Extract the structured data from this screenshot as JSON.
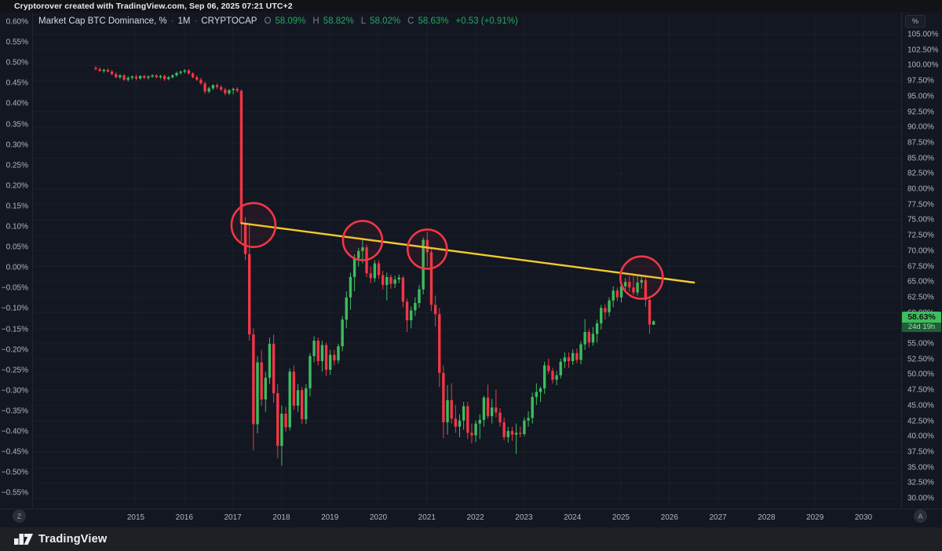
{
  "attribution": "Cryptorover created with TradingView.com, Sep 06, 2025 07:21 UTC+2",
  "legend": {
    "title": "Market Cap BTC Dominance, %",
    "separator": "·",
    "interval": "1M",
    "exchange": "CRYPTOCAP",
    "o_label": "O",
    "o_value": "58.09%",
    "h_label": "H",
    "h_value": "58.82%",
    "l_label": "L",
    "l_value": "58.02%",
    "c_label": "C",
    "c_value": "58.63%",
    "change": "+0.53 (+0.91%)"
  },
  "right_axis": {
    "mode_button": "%",
    "labels": [
      "105.00%",
      "102.50%",
      "100.00%",
      "97.50%",
      "95.00%",
      "92.50%",
      "90.00%",
      "87.50%",
      "85.00%",
      "82.50%",
      "80.00%",
      "77.50%",
      "75.00%",
      "72.50%",
      "70.00%",
      "67.50%",
      "65.00%",
      "62.50%",
      "60.00%",
      "57.50%",
      "55.00%",
      "52.50%",
      "50.00%",
      "47.50%",
      "45.00%",
      "42.50%",
      "40.00%",
      "37.50%",
      "35.00%",
      "32.50%",
      "30.00%"
    ],
    "badge": {
      "price": "58.63%",
      "countdown": "24d 19h"
    },
    "auto_button": "A"
  },
  "left_axis": {
    "labels": [
      "0.60%",
      "0.55%",
      "0.50%",
      "0.45%",
      "0.40%",
      "0.35%",
      "0.30%",
      "0.25%",
      "0.20%",
      "0.15%",
      "0.10%",
      "0.05%",
      "0.00%",
      "−0.05%",
      "−0.10%",
      "−0.15%",
      "−0.20%",
      "−0.25%",
      "−0.30%",
      "−0.35%",
      "−0.40%",
      "−0.45%",
      "−0.50%",
      "−0.55%"
    ],
    "zoom_button": "Z"
  },
  "time_axis": {
    "years": [
      "2015",
      "2016",
      "2017",
      "2018",
      "2019",
      "2020",
      "2021",
      "2022",
      "2023",
      "2024",
      "2025",
      "2026",
      "2027",
      "2028",
      "2029",
      "2030"
    ]
  },
  "footer": {
    "brand": "TradingView"
  },
  "colors": {
    "background": "#131722",
    "up": "#3cbd5e",
    "down": "#f23645",
    "trendline": "#f2cc2a",
    "annotation": "#f23645",
    "axis_text": "#b2b5be",
    "legend_value_green": "#27a65f",
    "badge_bg": "#3dbd5b",
    "countdown_bg": "#255c38"
  },
  "chart_data": {
    "type": "candlestick",
    "title": "Market Cap BTC Dominance, %",
    "symbol": "CRYPTOCAP",
    "interval": "1M",
    "start_month": "2014-03",
    "y_axis": {
      "min": 30,
      "max": 105,
      "step": 2.5,
      "unit": "%"
    },
    "x_years_shown": [
      2015,
      2016,
      2017,
      2018,
      2019,
      2020,
      2021,
      2022,
      2023,
      2024,
      2025,
      2026,
      2027,
      2028,
      2029,
      2030
    ],
    "last_price": 58.63,
    "bar_countdown": "24d 19h",
    "candles_ohlc": [
      [
        99.6,
        99.9,
        99.2,
        99.4
      ],
      [
        99.4,
        99.7,
        99.0,
        99.1
      ],
      [
        99.1,
        99.5,
        98.8,
        99.3
      ],
      [
        99.3,
        99.5,
        98.9,
        99.0
      ],
      [
        99.0,
        99.3,
        98.4,
        98.6
      ],
      [
        98.6,
        98.9,
        97.9,
        98.1
      ],
      [
        98.1,
        98.6,
        97.8,
        98.4
      ],
      [
        98.4,
        98.6,
        97.5,
        97.7
      ],
      [
        97.7,
        98.3,
        97.4,
        98.0
      ],
      [
        98.0,
        98.4,
        97.7,
        98.2
      ],
      [
        98.2,
        98.5,
        97.6,
        97.9
      ],
      [
        97.9,
        98.4,
        97.7,
        98.3
      ],
      [
        98.3,
        98.5,
        97.8,
        98.0
      ],
      [
        98.0,
        98.4,
        97.7,
        98.2
      ],
      [
        98.2,
        98.6,
        98.0,
        98.4
      ],
      [
        98.4,
        98.6,
        97.9,
        98.1
      ],
      [
        98.1,
        98.5,
        97.8,
        98.3
      ],
      [
        98.3,
        98.5,
        97.5,
        97.8
      ],
      [
        97.8,
        98.3,
        97.6,
        98.1
      ],
      [
        98.1,
        98.6,
        97.9,
        98.4
      ],
      [
        98.4,
        99.0,
        98.2,
        98.8
      ],
      [
        98.8,
        99.2,
        98.5,
        99.0
      ],
      [
        99.0,
        99.4,
        98.7,
        99.2
      ],
      [
        99.2,
        99.4,
        98.5,
        98.7
      ],
      [
        98.7,
        98.9,
        97.9,
        98.1
      ],
      [
        98.1,
        98.4,
        97.5,
        97.7
      ],
      [
        97.7,
        98.0,
        96.9,
        97.1
      ],
      [
        97.1,
        97.4,
        95.4,
        95.8
      ],
      [
        95.8,
        96.6,
        95.5,
        96.3
      ],
      [
        96.3,
        97.0,
        96.0,
        96.8
      ],
      [
        96.8,
        97.1,
        96.2,
        96.5
      ],
      [
        96.5,
        96.8,
        95.8,
        96.1
      ],
      [
        96.1,
        96.4,
        95.2,
        95.5
      ],
      [
        95.5,
        96.2,
        95.2,
        96.0
      ],
      [
        96.0,
        96.4,
        95.3,
        96.2
      ],
      [
        96.2,
        96.5,
        95.6,
        95.9
      ],
      [
        95.9,
        96.1,
        71.5,
        74.5
      ],
      [
        74.5,
        75.5,
        68.5,
        69.5
      ],
      [
        69.5,
        74.3,
        55.5,
        56.5
      ],
      [
        56.5,
        57.5,
        37.8,
        42.0
      ],
      [
        42.0,
        53.0,
        40.5,
        52.0
      ],
      [
        52.0,
        54.0,
        45.0,
        46.0
      ],
      [
        46.0,
        50.5,
        44.0,
        49.5
      ],
      [
        49.5,
        56.0,
        48.5,
        55.0
      ],
      [
        55.0,
        56.5,
        45.5,
        47.0
      ],
      [
        47.0,
        48.5,
        36.5,
        38.5
      ],
      [
        38.5,
        45.0,
        35.3,
        43.7
      ],
      [
        43.7,
        44.8,
        40.8,
        41.5
      ],
      [
        41.5,
        51.0,
        41.0,
        50.5
      ],
      [
        50.5,
        51.5,
        44.3,
        45.0
      ],
      [
        45.0,
        48.5,
        44.0,
        47.5
      ],
      [
        47.5,
        48.0,
        42.0,
        42.8
      ],
      [
        42.8,
        48.5,
        42.0,
        47.8
      ],
      [
        47.8,
        53.5,
        46.5,
        53.0
      ],
      [
        53.0,
        56.2,
        52.0,
        55.5
      ],
      [
        55.5,
        56.0,
        51.5,
        52.2
      ],
      [
        52.2,
        55.5,
        50.5,
        54.8
      ],
      [
        54.8,
        55.2,
        49.8,
        50.8
      ],
      [
        50.8,
        54.0,
        50.0,
        53.2
      ],
      [
        53.2,
        54.0,
        51.5,
        52.3
      ],
      [
        52.3,
        55.0,
        51.8,
        54.6
      ],
      [
        54.6,
        59.5,
        53.8,
        58.9
      ],
      [
        58.9,
        63.5,
        57.5,
        62.5
      ],
      [
        62.5,
        66.5,
        60.5,
        65.8
      ],
      [
        65.8,
        69.5,
        63.5,
        68.8
      ],
      [
        68.8,
        70.5,
        67.5,
        70.0
      ],
      [
        70.0,
        72.0,
        68.0,
        70.6
      ],
      [
        70.6,
        71.0,
        65.8,
        66.4
      ],
      [
        66.4,
        67.5,
        64.8,
        65.6
      ],
      [
        65.6,
        68.5,
        65.0,
        68.0
      ],
      [
        68.0,
        68.5,
        65.5,
        66.1
      ],
      [
        66.1,
        66.8,
        63.8,
        64.5
      ],
      [
        64.5,
        66.5,
        62.0,
        65.8
      ],
      [
        65.8,
        66.2,
        63.9,
        64.7
      ],
      [
        64.7,
        66.0,
        64.0,
        65.4
      ],
      [
        65.4,
        66.2,
        64.8,
        65.7
      ],
      [
        65.7,
        66.0,
        60.9,
        61.8
      ],
      [
        61.8,
        62.3,
        56.9,
        58.8
      ],
      [
        58.8,
        61.0,
        57.5,
        60.4
      ],
      [
        60.4,
        62.5,
        59.5,
        61.6
      ],
      [
        61.6,
        64.5,
        60.8,
        63.8
      ],
      [
        63.8,
        72.2,
        63.0,
        71.8
      ],
      [
        71.8,
        73.1,
        67.5,
        69.8
      ],
      [
        69.8,
        70.5,
        60.3,
        61.3
      ],
      [
        61.3,
        62.8,
        57.8,
        59.8
      ],
      [
        59.8,
        60.8,
        48.0,
        50.3
      ],
      [
        50.3,
        51.5,
        39.7,
        42.3
      ],
      [
        42.3,
        48.3,
        40.3,
        45.9
      ],
      [
        45.9,
        48.6,
        42.1,
        42.9
      ],
      [
        42.9,
        45.1,
        40.6,
        41.6
      ],
      [
        41.6,
        43.6,
        39.9,
        42.6
      ],
      [
        42.6,
        45.6,
        41.1,
        44.9
      ],
      [
        44.9,
        45.6,
        39.6,
        40.6
      ],
      [
        40.6,
        42.1,
        38.9,
        40.2
      ],
      [
        40.2,
        42.6,
        39.1,
        42.1
      ],
      [
        42.1,
        43.6,
        39.6,
        42.7
      ],
      [
        42.7,
        46.6,
        41.6,
        46.3
      ],
      [
        46.3,
        48.4,
        42.9,
        43.3
      ],
      [
        43.3,
        46.1,
        42.1,
        44.7
      ],
      [
        44.7,
        47.6,
        43.1,
        43.9
      ],
      [
        43.9,
        44.6,
        41.6,
        42.3
      ],
      [
        42.3,
        43.1,
        39.4,
        39.9
      ],
      [
        39.9,
        41.6,
        39.0,
        40.9
      ],
      [
        40.9,
        41.6,
        39.3,
        40.3
      ],
      [
        40.3,
        42.1,
        37.2,
        40.6
      ],
      [
        40.6,
        41.6,
        39.9,
        40.4
      ],
      [
        40.4,
        43.1,
        40.1,
        42.6
      ],
      [
        42.6,
        44.1,
        41.6,
        43.0
      ],
      [
        43.0,
        47.1,
        42.1,
        46.4
      ],
      [
        46.4,
        48.6,
        45.1,
        47.2
      ],
      [
        47.2,
        48.1,
        45.6,
        47.8
      ],
      [
        47.8,
        52.1,
        46.9,
        51.5
      ],
      [
        51.5,
        52.6,
        50.1,
        50.6
      ],
      [
        50.6,
        51.1,
        48.6,
        49.2
      ],
      [
        49.2,
        50.6,
        48.3,
        49.9
      ],
      [
        49.9,
        52.6,
        49.4,
        52.1
      ],
      [
        52.1,
        53.6,
        51.1,
        52.8
      ],
      [
        52.8,
        53.6,
        51.1,
        52.2
      ],
      [
        52.2,
        54.1,
        51.6,
        53.5
      ],
      [
        53.5,
        54.2,
        51.9,
        52.4
      ],
      [
        52.4,
        55.4,
        51.7,
        54.9
      ],
      [
        54.9,
        59.0,
        54.0,
        56.9
      ],
      [
        56.9,
        57.4,
        54.4,
        55.2
      ],
      [
        55.2,
        57.7,
        54.7,
        56.6
      ],
      [
        56.6,
        58.9,
        55.2,
        58.3
      ],
      [
        58.3,
        61.3,
        57.3,
        60.8
      ],
      [
        60.8,
        61.4,
        58.9,
        60.1
      ],
      [
        60.1,
        62.5,
        59.4,
        62.0
      ],
      [
        62.0,
        64.3,
        60.9,
        63.6
      ],
      [
        63.6,
        64.1,
        61.9,
        62.5
      ],
      [
        62.5,
        64.9,
        61.7,
        64.3
      ],
      [
        64.3,
        65.6,
        63.3,
        65.0
      ],
      [
        65.0,
        65.9,
        63.4,
        64.1
      ],
      [
        64.1,
        66.1,
        62.9,
        63.3
      ],
      [
        63.3,
        66.0,
        62.8,
        64.9
      ],
      [
        64.9,
        65.9,
        63.9,
        65.3
      ],
      [
        65.3,
        65.9,
        61.0,
        62.1
      ],
      [
        62.1,
        62.6,
        56.6,
        58.1
      ],
      [
        58.09,
        58.82,
        58.02,
        58.63
      ]
    ],
    "drawings": {
      "trendline": {
        "from_month_index": 36,
        "from_value": 74.5,
        "to_month_index": 148,
        "to_value": 64.9
      },
      "circles": [
        {
          "month_index": 39,
          "value": 74.2,
          "radius_px": 28
        },
        {
          "month_index": 66,
          "value": 71.7,
          "radius_px": 25
        },
        {
          "month_index": 82,
          "value": 70.3,
          "radius_px": 25
        },
        {
          "month_index": 135,
          "value": 65.7,
          "radius_px": 27
        }
      ]
    }
  }
}
